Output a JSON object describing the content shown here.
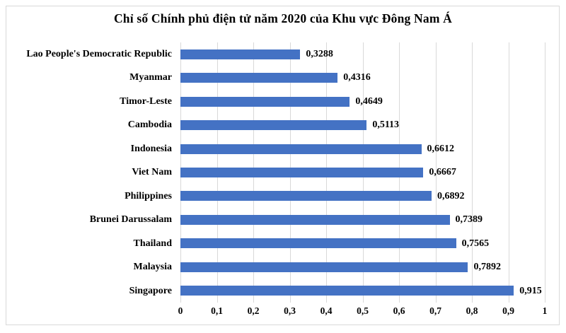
{
  "chart_data": {
    "type": "bar",
    "orientation": "horizontal",
    "title": "Chỉ số Chính phủ điện tử năm 2020 của Khu vực Đông Nam Á",
    "categories": [
      "Lao People's Democratic Republic",
      "Myanmar",
      "Timor-Leste",
      "Cambodia",
      "Indonesia",
      "Viet Nam",
      "Philippines",
      "Brunei Darussalam",
      "Thailand",
      "Malaysia",
      "Singapore"
    ],
    "values": [
      0.3288,
      0.4316,
      0.4649,
      0.5113,
      0.6612,
      0.6667,
      0.6892,
      0.7389,
      0.7565,
      0.7892,
      0.915
    ],
    "value_labels": [
      "0,3288",
      "0,4316",
      "0,4649",
      "0,5113",
      "0,6612",
      "0,6667",
      "0,6892",
      "0,7389",
      "0,7565",
      "0,7892",
      "0,915"
    ],
    "x_ticks": [
      "0",
      "0,1",
      "0,2",
      "0,3",
      "0,4",
      "0,5",
      "0,6",
      "0,7",
      "0,8",
      "0,9",
      "1"
    ],
    "xlim": [
      0,
      1
    ],
    "xlabel": "",
    "ylabel": "",
    "grid": "vertical",
    "legend": "none",
    "colors": {
      "bar": "#4472C4",
      "gridline": "#D9D9D9",
      "frame": "#D9D9D9",
      "text": "#000000",
      "background": "#FFFFFF"
    }
  }
}
